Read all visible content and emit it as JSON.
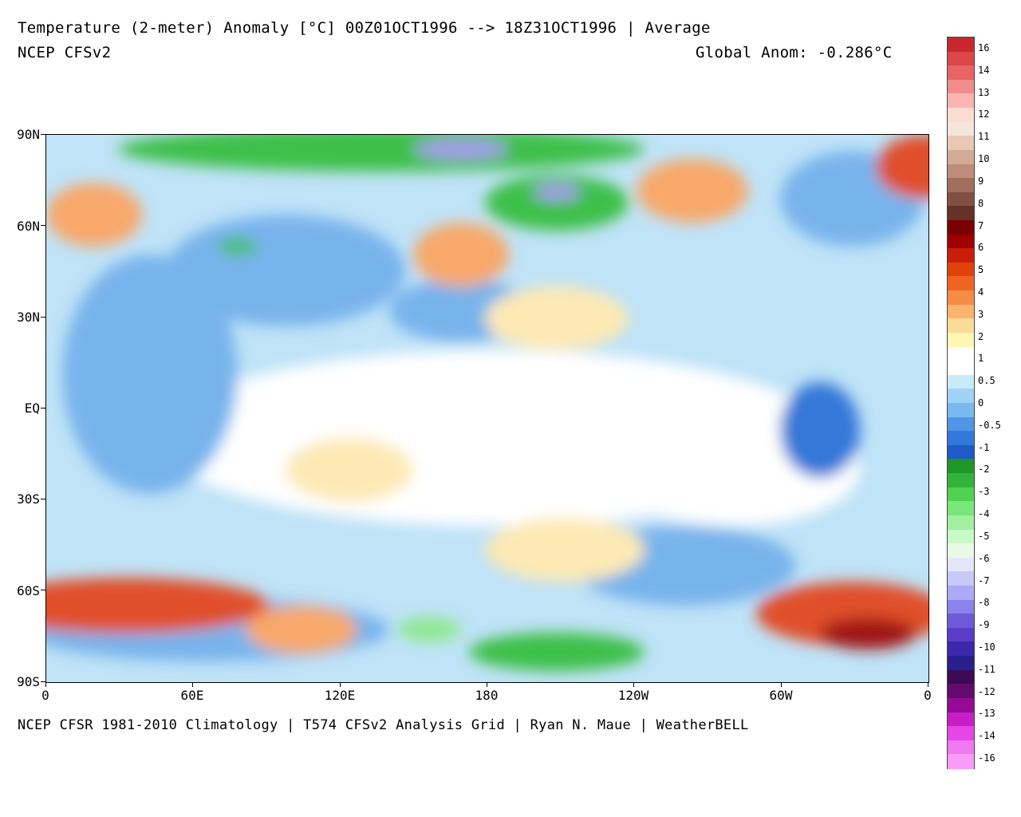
{
  "header": {
    "title_line1": "Temperature (2-meter) Anomaly  [°C] 00Z01OCT1996 --> 18Z31OCT1996 | Average",
    "title_line2": "NCEP CFSv2",
    "global_anom": "Global Anom: -0.286°C"
  },
  "footer": "NCEP CFSR 1981-2010 Climatology | T574 CFSv2 Analysis Grid | Ryan N. Maue | WeatherBELL",
  "axes": {
    "lat_labels": [
      "90N",
      "60N",
      "30N",
      "EQ",
      "30S",
      "60S",
      "90S"
    ],
    "lon_labels": [
      "0",
      "60E",
      "120E",
      "180",
      "120W",
      "60W",
      "0"
    ]
  },
  "colorbar": {
    "labels": [
      "16",
      "14",
      "13",
      "12",
      "11",
      "10",
      "9",
      "8",
      "7",
      "6",
      "5",
      "4",
      "3",
      "2",
      "1",
      "0.5",
      "0",
      "-0.5",
      "-1",
      "-2",
      "-3",
      "-4",
      "-5",
      "-6",
      "-7",
      "-8",
      "-9",
      "-10",
      "-11",
      "-12",
      "-13",
      "-14",
      "-16"
    ],
    "colors": [
      "#c8282d",
      "#dc4646",
      "#e66464",
      "#f08c8c",
      "#fab4b4",
      "#fadcd2",
      "#f5e6dc",
      "#e6c8b4",
      "#d2aa96",
      "#be8c78",
      "#a06e5a",
      "#825041",
      "#643228",
      "#780000",
      "#a00000",
      "#c81e0a",
      "#e1410a",
      "#f06423",
      "#f58c46",
      "#fab46e",
      "#fadc96",
      "#fff5b4",
      "#ffffff",
      "#ffffff",
      "#c8ebfa",
      "#a0d2f5",
      "#78b9f0",
      "#5096e6",
      "#3278dc",
      "#1e5ac8",
      "#1e9628",
      "#32b43c",
      "#50d250",
      "#78e678",
      "#a0f0a0",
      "#c8fac8",
      "#e6fae6",
      "#e6e6fa",
      "#c8c8fa",
      "#aaaaf5",
      "#8c82eb",
      "#6e5ad7",
      "#5a3cc8",
      "#3c28aa",
      "#281e8c",
      "#3c0a50",
      "#640a6e",
      "#960a96",
      "#c81ec8",
      "#e646e6",
      "#f078f0",
      "#fa9bfa"
    ]
  },
  "map_palette": {
    "ocean_base": "#d6ecfa",
    "warm_weak": "#fde9b4",
    "warm": "#f8a86a",
    "warm_strong": "#e0502a",
    "warm_extreme": "#a01414",
    "cool_weak": "#bfe3f7",
    "cool": "#78b4ec",
    "cool_strong": "#3478d8",
    "green": "#3cc048",
    "green_light": "#8ee890",
    "purple": "#a898f0",
    "neutral": "#ffffff"
  }
}
